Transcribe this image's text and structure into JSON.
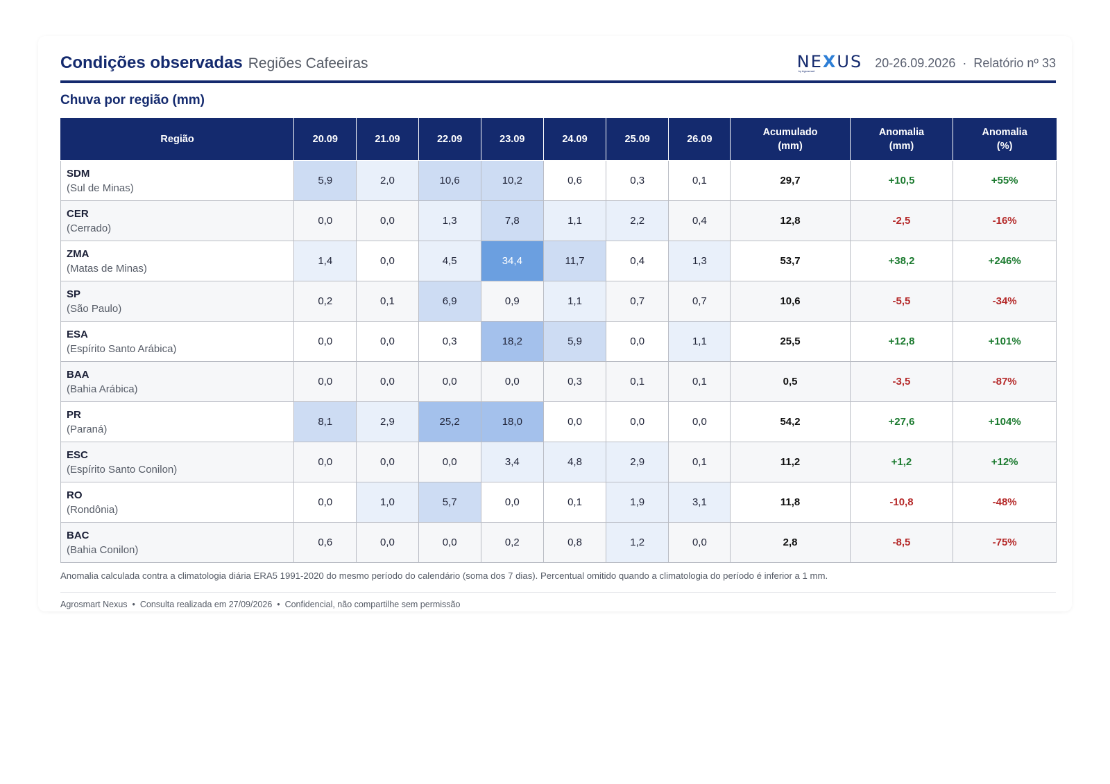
{
  "header": {
    "title": "Condições observadas",
    "subtitle": "Regiões Cafeeiras",
    "logo_text": "NEXUS",
    "logo_sub": "by Agrosmart",
    "date_range": "20-26.09.2026",
    "separator": "·",
    "report": "Relatório nº 33"
  },
  "section_title": "Chuva por região (mm)",
  "table": {
    "columns": [
      "Região",
      "20.09",
      "21.09",
      "22.09",
      "23.09",
      "24.09",
      "25.09",
      "26.09",
      "Acumulado (mm)",
      "Anomalia (mm)",
      "Anomalia (%)"
    ],
    "column_lines": [
      [
        "Região"
      ],
      [
        "20.09"
      ],
      [
        "21.09"
      ],
      [
        "22.09"
      ],
      [
        "23.09"
      ],
      [
        "24.09"
      ],
      [
        "25.09"
      ],
      [
        "26.09"
      ],
      [
        "Acumulado",
        "(mm)"
      ],
      [
        "Anomalia",
        "(mm)"
      ],
      [
        "Anomalia",
        "(%)"
      ]
    ],
    "rows": [
      {
        "code": "SDM",
        "name": "(Sul de Minas)",
        "days": [
          "5,9",
          "2,0",
          "10,6",
          "10,2",
          "0,6",
          "0,3",
          "0,1"
        ],
        "acc": "29,7",
        "anom_mm": "+10,5",
        "anom_pct": "+55%"
      },
      {
        "code": "CER",
        "name": "(Cerrado)",
        "days": [
          "0,0",
          "0,0",
          "1,3",
          "7,8",
          "1,1",
          "2,2",
          "0,4"
        ],
        "acc": "12,8",
        "anom_mm": "-2,5",
        "anom_pct": "-16%"
      },
      {
        "code": "ZMA",
        "name": "(Matas de Minas)",
        "days": [
          "1,4",
          "0,0",
          "4,5",
          "34,4",
          "11,7",
          "0,4",
          "1,3"
        ],
        "acc": "53,7",
        "anom_mm": "+38,2",
        "anom_pct": "+246%"
      },
      {
        "code": "SP",
        "name": "(São Paulo)",
        "days": [
          "0,2",
          "0,1",
          "6,9",
          "0,9",
          "1,1",
          "0,7",
          "0,7"
        ],
        "acc": "10,6",
        "anom_mm": "-5,5",
        "anom_pct": "-34%"
      },
      {
        "code": "ESA",
        "name": "(Espírito Santo Arábica)",
        "days": [
          "0,0",
          "0,0",
          "0,3",
          "18,2",
          "5,9",
          "0,0",
          "1,1"
        ],
        "acc": "25,5",
        "anom_mm": "+12,8",
        "anom_pct": "+101%"
      },
      {
        "code": "BAA",
        "name": "(Bahia Arábica)",
        "days": [
          "0,0",
          "0,0",
          "0,0",
          "0,0",
          "0,3",
          "0,1",
          "0,1"
        ],
        "acc": "0,5",
        "anom_mm": "-3,5",
        "anom_pct": "-87%"
      },
      {
        "code": "PR",
        "name": "(Paraná)",
        "days": [
          "8,1",
          "2,9",
          "25,2",
          "18,0",
          "0,0",
          "0,0",
          "0,0"
        ],
        "acc": "54,2",
        "anom_mm": "+27,6",
        "anom_pct": "+104%"
      },
      {
        "code": "ESC",
        "name": "(Espírito Santo Conilon)",
        "days": [
          "0,0",
          "0,0",
          "0,0",
          "3,4",
          "4,8",
          "2,9",
          "0,1"
        ],
        "acc": "11,2",
        "anom_mm": "+1,2",
        "anom_pct": "+12%"
      },
      {
        "code": "RO",
        "name": "(Rondônia)",
        "days": [
          "0,0",
          "1,0",
          "5,7",
          "0,0",
          "0,1",
          "1,9",
          "3,1"
        ],
        "acc": "11,8",
        "anom_mm": "-10,8",
        "anom_pct": "-48%"
      },
      {
        "code": "BAC",
        "name": "(Bahia Conilon)",
        "days": [
          "0,6",
          "0,0",
          "0,0",
          "0,2",
          "0,8",
          "1,2",
          "0,0"
        ],
        "acc": "2,8",
        "anom_mm": "-8,5",
        "anom_pct": "-75%"
      }
    ]
  },
  "colors": {
    "navy": "#142a6e",
    "positive": "#1b7a2f",
    "negative": "#b52a2a",
    "heat_level_1": "#e9f0fa",
    "heat_level_2": "#cddcf3",
    "heat_level_3": "#a4c1ec",
    "heat_level_4": "#6b9fe0"
  },
  "note": "Anomalia calculada contra a climatologia diária ERA5 1991-2020 do mesmo período do calendário (soma dos 7 dias). Percentual omitido quando a climatologia do período é inferior a 1 mm.",
  "footer": {
    "brand": "Agrosmart Nexus",
    "dot": "•",
    "query": "Consulta realizada em 27/09/2026",
    "confidential": "Confidencial, não compartilhe sem permissão"
  }
}
